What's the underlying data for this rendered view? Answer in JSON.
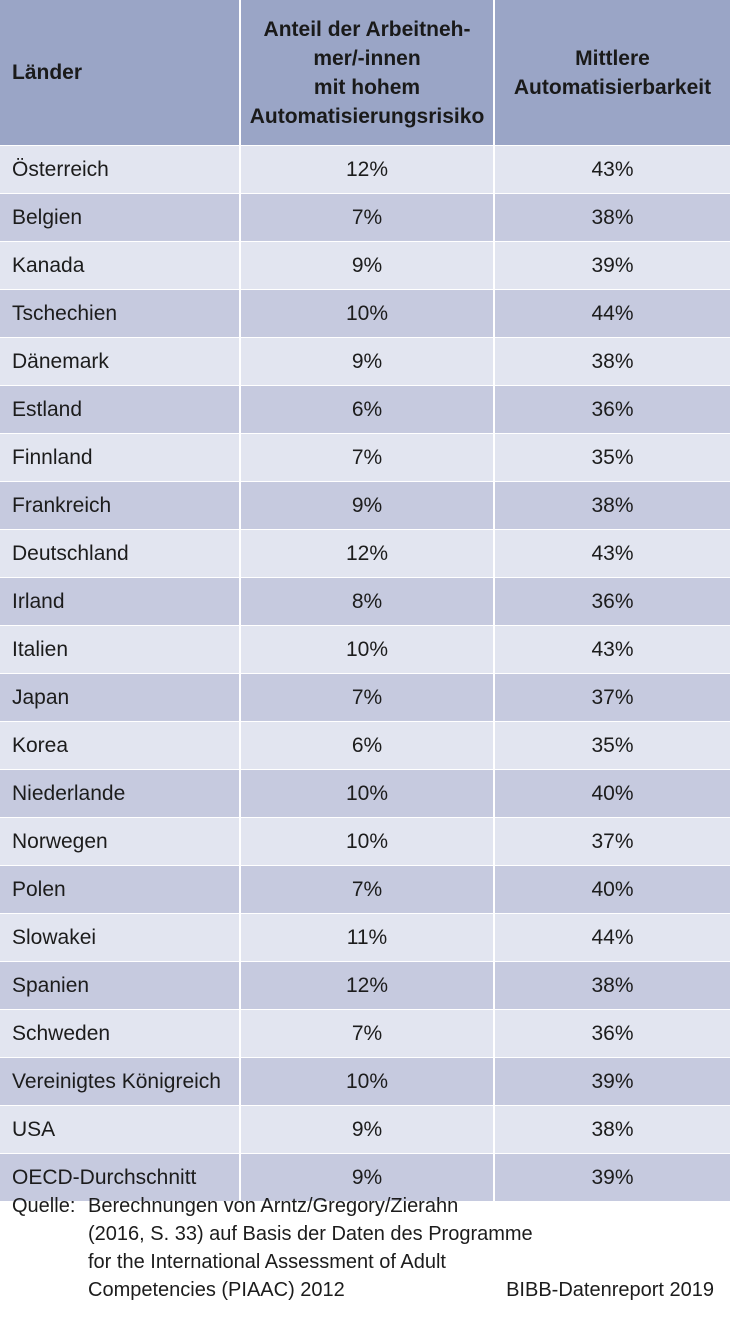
{
  "table": {
    "headers": {
      "country": "Länder",
      "risk_lines": [
        "Anteil der Arbeitneh-",
        "mer/-innen",
        "mit hohem",
        "Automatisierungsrisiko"
      ],
      "automation_lines": [
        "Mittlere",
        "Automatisierbarkeit"
      ]
    },
    "rows": [
      {
        "country": "Österreich",
        "risk": "12%",
        "automation": "43%"
      },
      {
        "country": "Belgien",
        "risk": "7%",
        "automation": "38%"
      },
      {
        "country": "Kanada",
        "risk": "9%",
        "automation": "39%"
      },
      {
        "country": "Tschechien",
        "risk": "10%",
        "automation": "44%"
      },
      {
        "country": "Dänemark",
        "risk": "9%",
        "automation": "38%"
      },
      {
        "country": "Estland",
        "risk": "6%",
        "automation": "36%"
      },
      {
        "country": "Finnland",
        "risk": "7%",
        "automation": "35%"
      },
      {
        "country": "Frankreich",
        "risk": "9%",
        "automation": "38%"
      },
      {
        "country": "Deutschland",
        "risk": "12%",
        "automation": "43%"
      },
      {
        "country": "Irland",
        "risk": "8%",
        "automation": "36%"
      },
      {
        "country": "Italien",
        "risk": "10%",
        "automation": "43%"
      },
      {
        "country": "Japan",
        "risk": "7%",
        "automation": "37%"
      },
      {
        "country": "Korea",
        "risk": "6%",
        "automation": "35%"
      },
      {
        "country": "Niederlande",
        "risk": "10%",
        "automation": "40%"
      },
      {
        "country": "Norwegen",
        "risk": "10%",
        "automation": "37%"
      },
      {
        "country": "Polen",
        "risk": "7%",
        "automation": "40%"
      },
      {
        "country": "Slowakei",
        "risk": "11%",
        "automation": "44%"
      },
      {
        "country": "Spanien",
        "risk": "12%",
        "automation": "38%"
      },
      {
        "country": "Schweden",
        "risk": "7%",
        "automation": "36%"
      },
      {
        "country": "Vereinigtes Königreich",
        "risk": "10%",
        "automation": "39%"
      },
      {
        "country": "USA",
        "risk": "9%",
        "automation": "38%"
      },
      {
        "country": "OECD-Durchschnitt",
        "risk": "9%",
        "automation": "39%"
      }
    ]
  },
  "footer": {
    "source_label": "Quelle:",
    "source_lines": [
      "Berechnungen von Arntz/Gregory/Zierahn",
      "(2016, S. 33) auf Basis der Daten des Programme",
      "for the International Assessment of Adult",
      "Competencies (PIAAC) 2012"
    ],
    "credit": "BIBB-Datenreport 2019"
  },
  "colors": {
    "header_bg": "#9aa5c6",
    "row_light": "#e2e5f0",
    "row_dark": "#c6cadf"
  }
}
